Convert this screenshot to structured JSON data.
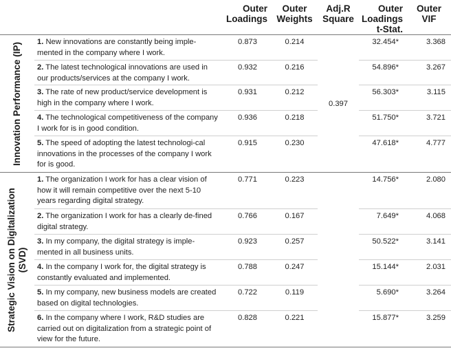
{
  "headers": {
    "loadings": "Outer Loadings",
    "weights": "Outer Weights",
    "adjr": "Adj.R Square",
    "tstat": "Outer Loadings t-Stat.",
    "vif": "Outer VIF"
  },
  "groups": [
    {
      "label_line1": "Innovation Performance (IP)",
      "label_line2": "",
      "adj_r_square": "0.397",
      "rows": [
        {
          "num": "1.",
          "text": "New innovations are constantly being imple-mented in the company where I work.",
          "loading": "0.873",
          "weight": "0.214",
          "tstat": "32.454*",
          "vif": "3.368"
        },
        {
          "num": "2.",
          "text": "The latest technological innovations are used in our products/services at the company I work.",
          "loading": "0.932",
          "weight": "0.216",
          "tstat": "54.896*",
          "vif": "3.267"
        },
        {
          "num": "3.",
          "text": "The rate of new product/service development is high in the company where I work.",
          "loading": "0.931",
          "weight": "0.212",
          "tstat": "56.303*",
          "vif": "3.115"
        },
        {
          "num": "4.",
          "text": "The technological competitiveness of the company I work for is in good condition.",
          "loading": "0.936",
          "weight": "0.218",
          "tstat": "51.750*",
          "vif": "3.721"
        },
        {
          "num": "5.",
          "text": "The speed of adopting the latest technologi-cal innovations in the processes of the company I work for is good.",
          "loading": "0.915",
          "weight": "0.230",
          "tstat": "47.618*",
          "vif": "4.777"
        }
      ]
    },
    {
      "label_line1": "Strategic Vision on Digitalization",
      "label_line2": "(SVD)",
      "adj_r_square": "",
      "rows": [
        {
          "num": "1.",
          "text": "The organization I work for has a clear vision of how it will remain competitive over the next 5-10 years regarding digital strategy.",
          "loading": "0.771",
          "weight": "0.223",
          "tstat": "14.756*",
          "vif": "2.080"
        },
        {
          "num": "2.",
          "text": "The organization I work for has a clearly de-fined digital strategy.",
          "loading": "0.766",
          "weight": "0.167",
          "tstat": "7.649*",
          "vif": "4.068"
        },
        {
          "num": "3.",
          "text": "In my company, the digital strategy is imple-mented in all business units.",
          "loading": "0.923",
          "weight": "0.257",
          "tstat": "50.522*",
          "vif": "3.141"
        },
        {
          "num": "4.",
          "text": "In the company I work for, the digital strategy is constantly evaluated and implemented.",
          "loading": "0.788",
          "weight": "0.247",
          "tstat": "15.144*",
          "vif": "2.031"
        },
        {
          "num": "5.",
          "text": "In my company, new business models are created based on digital technologies.",
          "loading": "0.722",
          "weight": "0.119",
          "tstat": "5.690*",
          "vif": "3.264"
        },
        {
          "num": "6.",
          "text": "In the company where I work, R&D studies are carried out on digitalization from a strategic point of view for the future.",
          "loading": "0.828",
          "weight": "0.221",
          "tstat": "15.877*",
          "vif": "3.259"
        }
      ]
    }
  ]
}
